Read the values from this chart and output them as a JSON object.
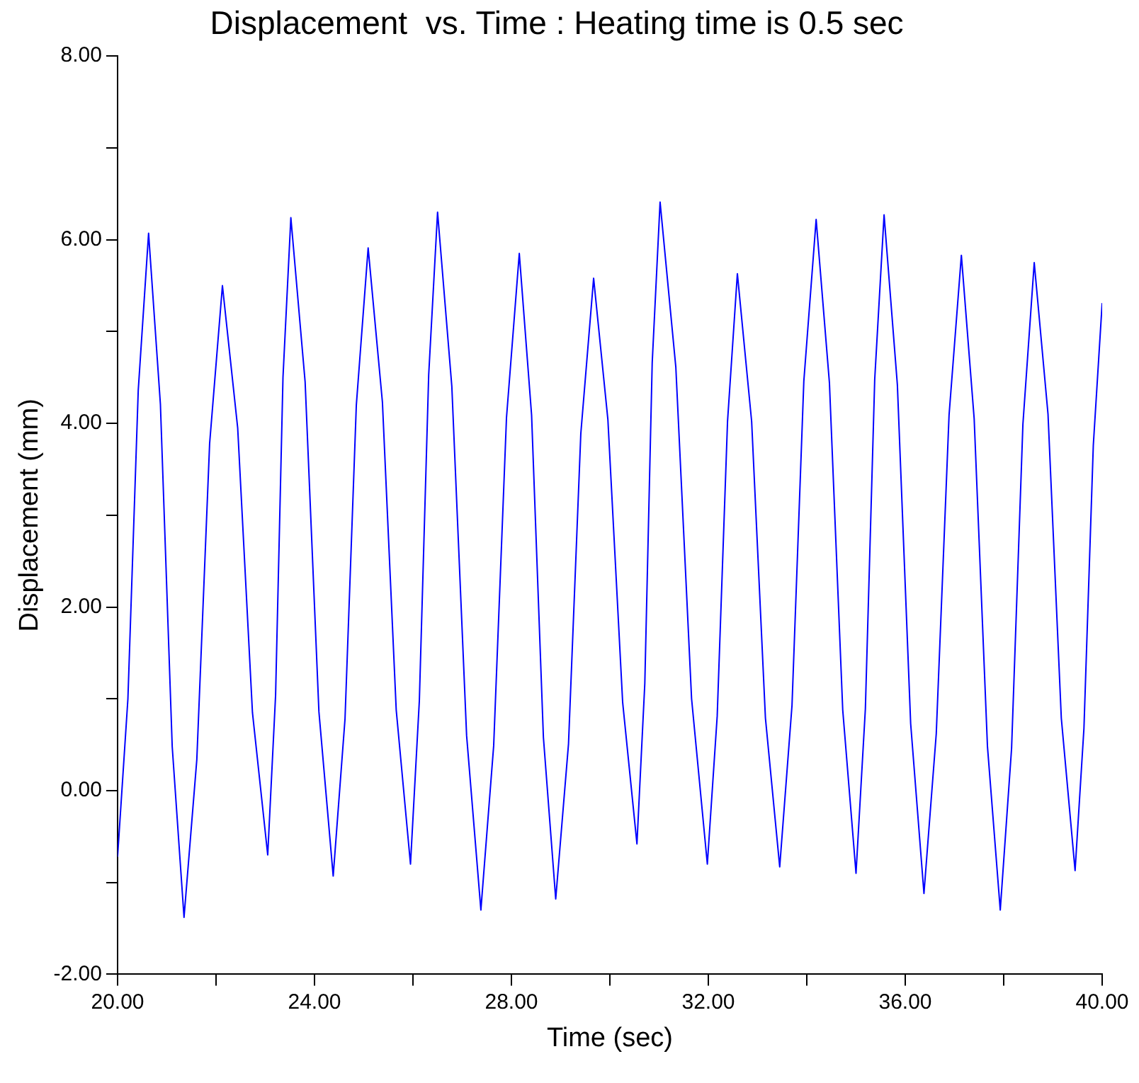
{
  "chart_data": {
    "type": "line",
    "title": "Displacement  vs. Time : Heating time is 0.5 sec",
    "xlabel": "Time (sec)",
    "ylabel": "Displacement (mm)",
    "xlim": [
      20,
      40
    ],
    "ylim": [
      -2,
      8
    ],
    "xticks": [
      {
        "value": 20,
        "label": "20.00"
      },
      {
        "value": 22,
        "label": null
      },
      {
        "value": 24,
        "label": "24.00"
      },
      {
        "value": 26,
        "label": null
      },
      {
        "value": 28,
        "label": "28.00"
      },
      {
        "value": 30,
        "label": null
      },
      {
        "value": 32,
        "label": "32.00"
      },
      {
        "value": 34,
        "label": null
      },
      {
        "value": 36,
        "label": "36.00"
      },
      {
        "value": 38,
        "label": null
      },
      {
        "value": 40,
        "label": "40.00"
      }
    ],
    "yticks": [
      {
        "value": -2,
        "label": "-2.00"
      },
      {
        "value": -1,
        "label": null
      },
      {
        "value": 0,
        "label": "0.00"
      },
      {
        "value": 1,
        "label": null
      },
      {
        "value": 2,
        "label": "2.00"
      },
      {
        "value": 3,
        "label": null
      },
      {
        "value": 4,
        "label": "4.00"
      },
      {
        "value": 5,
        "label": null
      },
      {
        "value": 6,
        "label": "6.00"
      },
      {
        "value": 7,
        "label": null
      },
      {
        "value": 8,
        "label": "8.00"
      }
    ],
    "grid": false,
    "legend": false,
    "marker": "none",
    "line_style": "solid",
    "series": [
      {
        "color": "#0000ff",
        "x": [
          20.0,
          20.21,
          20.42,
          20.63,
          20.87,
          21.11,
          21.35,
          21.61,
          21.87,
          22.13,
          22.44,
          22.74,
          23.05,
          23.21,
          23.36,
          23.52,
          23.81,
          24.09,
          24.38,
          24.62,
          24.85,
          25.09,
          25.38,
          25.66,
          25.95,
          26.13,
          26.32,
          26.5,
          26.79,
          27.09,
          27.38,
          27.64,
          27.9,
          28.16,
          28.41,
          28.65,
          28.9,
          29.16,
          29.41,
          29.67,
          29.96,
          30.26,
          30.55,
          30.71,
          30.86,
          31.02,
          31.34,
          31.66,
          31.98,
          32.18,
          32.39,
          32.59,
          32.88,
          33.16,
          33.45,
          33.7,
          33.94,
          34.19,
          34.46,
          34.73,
          35.0,
          35.19,
          35.38,
          35.57,
          35.84,
          36.11,
          36.38,
          36.63,
          36.89,
          37.14,
          37.4,
          37.67,
          37.93,
          38.16,
          38.39,
          38.62,
          38.9,
          39.17,
          39.45,
          39.63,
          39.82,
          40.0
        ],
        "values": [
          -0.72,
          1.0,
          4.36,
          6.07,
          4.21,
          0.48,
          -1.38,
          0.34,
          3.78,
          5.5,
          3.95,
          0.85,
          -0.7,
          1.04,
          4.5,
          6.24,
          4.45,
          0.86,
          -0.93,
          0.78,
          4.2,
          5.91,
          4.23,
          0.88,
          -0.8,
          0.98,
          4.53,
          6.3,
          4.4,
          0.6,
          -1.3,
          0.49,
          4.06,
          5.85,
          4.09,
          0.58,
          -1.18,
          0.51,
          3.89,
          5.58,
          4.04,
          0.96,
          -0.58,
          1.17,
          4.66,
          6.41,
          4.61,
          1.0,
          -0.8,
          0.81,
          4.02,
          5.63,
          4.02,
          0.79,
          -0.83,
          0.93,
          4.46,
          6.22,
          4.44,
          0.88,
          -0.9,
          0.89,
          4.48,
          6.27,
          4.42,
          0.73,
          -1.12,
          0.62,
          4.09,
          5.83,
          4.05,
          0.48,
          -1.3,
          0.46,
          3.99,
          5.75,
          4.1,
          0.79,
          -0.87,
          0.68,
          3.76,
          5.31
        ]
      }
    ]
  }
}
